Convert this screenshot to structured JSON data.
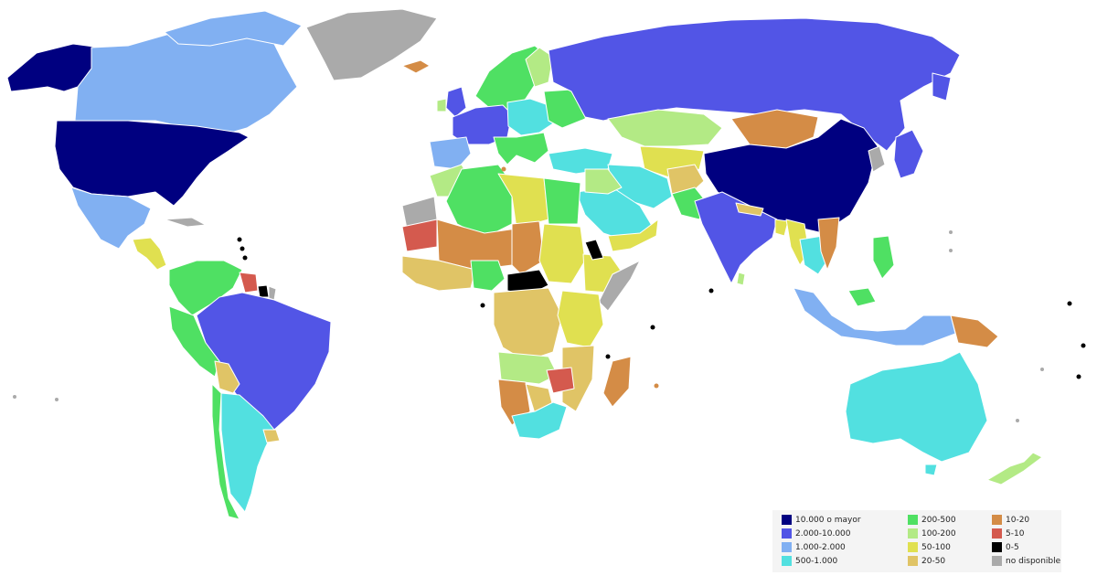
{
  "colors": {
    "c10000": "#000080",
    "c2000": "#5255e6",
    "c1000": "#81b0f2",
    "c500": "#52e0e0",
    "c200": "#4fe063",
    "c100": "#b3ea85",
    "c50": "#e0e050",
    "c20": "#e0c466",
    "c10": "#d48c46",
    "c5": "#d45a4e",
    "c0": "#000000",
    "cna": "#aaaaaa"
  },
  "legend": {
    "items": [
      {
        "label": "10.000 o mayor",
        "color": "#000080"
      },
      {
        "label": "2.000-10.000",
        "color": "#5255e6"
      },
      {
        "label": "1.000-2.000",
        "color": "#81b0f2"
      },
      {
        "label": "500-1.000",
        "color": "#52e0e0"
      },
      {
        "label": "200-500",
        "color": "#4fe063"
      },
      {
        "label": "100-200",
        "color": "#b3ea85"
      },
      {
        "label": "50-100",
        "color": "#e0e050"
      },
      {
        "label": "20-50",
        "color": "#e0c466"
      },
      {
        "label": "10-20",
        "color": "#d48c46"
      },
      {
        "label": "5-10",
        "color": "#d45a4e"
      },
      {
        "label": "0-5",
        "color": "#000000"
      },
      {
        "label": "no disponible",
        "color": "#aaaaaa"
      }
    ]
  }
}
